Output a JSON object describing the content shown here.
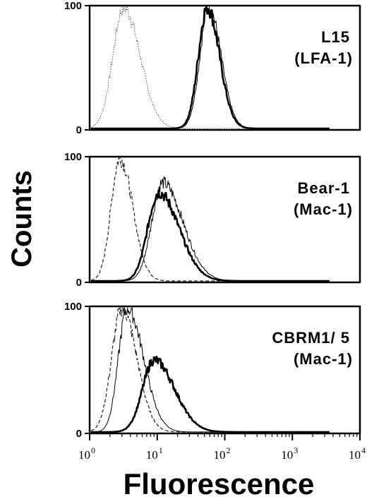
{
  "chart_data": {
    "type": "line",
    "ylabel": "Counts",
    "xlabel": "Fluorescence",
    "xscale": "log",
    "xlim": [
      1,
      10000
    ],
    "x_ticks": [
      {
        "base": "10",
        "exp": "0"
      },
      {
        "base": "10",
        "exp": "1"
      },
      {
        "base": "10",
        "exp": "2"
      },
      {
        "base": "10",
        "exp": "3"
      },
      {
        "base": "10",
        "exp": "4"
      }
    ],
    "panels": [
      {
        "label_line1": "L15",
        "label_line2": "(LFA-1)",
        "y_ticks": [
          "0",
          "100"
        ],
        "ylim": [
          0,
          100
        ],
        "series": [
          {
            "style": "thin-dotted",
            "peak_x": 3.2,
            "peak_y": 100,
            "spread_left": 0.16,
            "spread_right": 0.24
          },
          {
            "style": "thin-solid",
            "peak_x": 58,
            "peak_y": 100,
            "spread_left": 0.13,
            "spread_right": 0.18
          },
          {
            "style": "thick-solid",
            "peak_x": 55,
            "peak_y": 100,
            "spread_left": 0.13,
            "spread_right": 0.18
          }
        ]
      },
      {
        "label_line1": "Bear-1",
        "label_line2": "(Mac-1)",
        "y_ticks": [
          "0",
          "100"
        ],
        "ylim": [
          0,
          100
        ],
        "series": [
          {
            "style": "dashed",
            "peak_x": 2.8,
            "peak_y": 100,
            "spread_left": 0.13,
            "spread_right": 0.19
          },
          {
            "style": "thin-solid",
            "peak_x": 12,
            "peak_y": 80,
            "spread_left": 0.16,
            "spread_right": 0.3
          },
          {
            "style": "thick-solid",
            "peak_x": 10.5,
            "peak_y": 72,
            "spread_left": 0.16,
            "spread_right": 0.3
          }
        ]
      },
      {
        "label_line1": "CBRM1/ 5",
        "label_line2": "(Mac-1)",
        "y_ticks": [
          "0",
          "100"
        ],
        "ylim": [
          0,
          100
        ],
        "series": [
          {
            "style": "dashed",
            "peak_x": 3.0,
            "peak_y": 100,
            "spread_left": 0.15,
            "spread_right": 0.22
          },
          {
            "style": "thin-solid",
            "peak_x": 3.6,
            "peak_y": 100,
            "spread_left": 0.13,
            "spread_right": 0.24
          },
          {
            "style": "thick-solid",
            "peak_x": 9.0,
            "peak_y": 58,
            "spread_left": 0.17,
            "spread_right": 0.3
          }
        ]
      }
    ]
  }
}
